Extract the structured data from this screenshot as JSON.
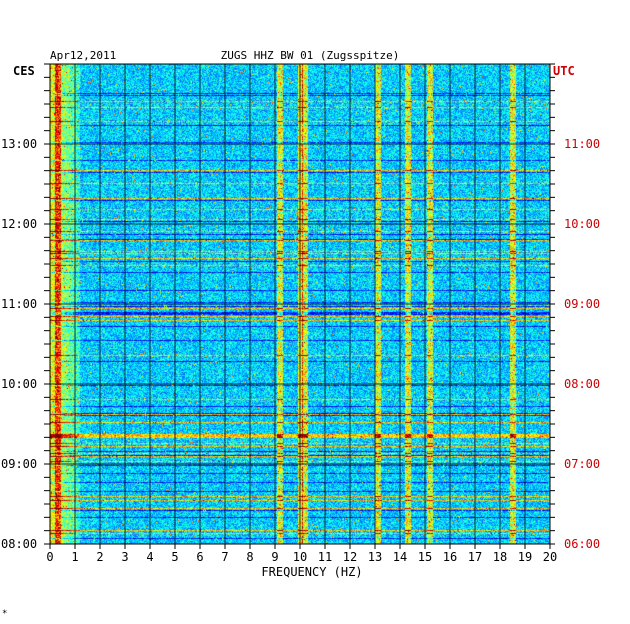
{
  "header": {
    "date": "Apr12,2011",
    "station": "ZUGS HHZ BW 01 (Zugsspitze)"
  },
  "labels": {
    "left_zone": "CES",
    "right_zone": "UTC",
    "footer_mark": "*"
  },
  "colors": {
    "background": "#ffffff",
    "text": "#000000",
    "utc_text": "#cc0000",
    "grid": "#000000",
    "spectrogram_low": "#000080",
    "spectrogram_mid": "#00bfff",
    "spectrogram_high": "#ffff00",
    "spectrogram_peak": "#ff0000"
  },
  "chart_data": {
    "type": "heatmap",
    "title": "ZUGS HHZ BW 01 (Zugsspitze)",
    "xlabel": "FREQUENCY (HZ)",
    "ylabel": "",
    "xlim": [
      0,
      20
    ],
    "x_ticks": [
      "0",
      "1",
      "2",
      "3",
      "4",
      "5",
      "6",
      "7",
      "8",
      "9",
      "10",
      "11",
      "12",
      "13",
      "14",
      "15",
      "16",
      "17",
      "18",
      "19",
      "20"
    ],
    "y_time_range_ces": [
      "08:00",
      "14:15"
    ],
    "y_ticks_left": [
      "08:00",
      "09:00",
      "10:00",
      "11:00",
      "12:00",
      "13:00"
    ],
    "y_ticks_right": [
      "06:00",
      "07:00",
      "08:00",
      "09:00",
      "10:00",
      "11:00"
    ],
    "y_tick_hours": [
      8,
      9,
      10,
      11,
      12,
      13
    ],
    "minor_tick_minutes": 10,
    "energy_bands_hz": [
      0.3,
      9.2,
      10.0,
      10.2,
      13.1,
      14.3,
      15.2,
      18.5
    ],
    "grid": true,
    "colormap": "jet"
  }
}
